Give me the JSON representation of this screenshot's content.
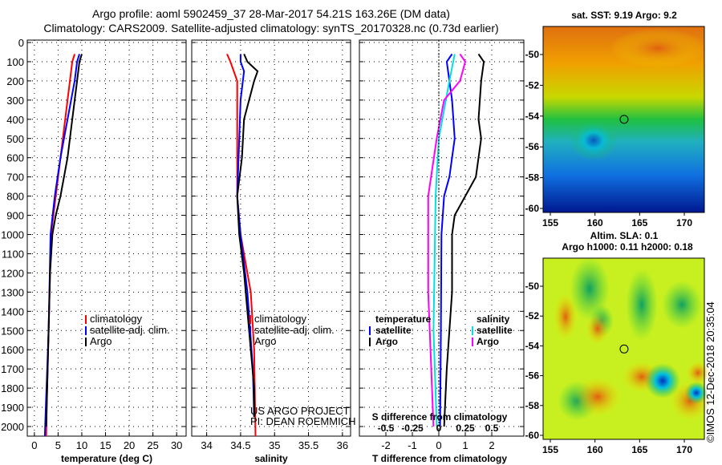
{
  "title_line1": "Argo profile: aoml 5902459_37 28-Mar-2017 54.21S 163.26E (DM data)",
  "title_line2": "Climatology: CARS2009. Satellite-adjusted climatology: synTS_20170328.nc (0.73d earlier)",
  "depth_ticks": [
    0,
    100,
    200,
    300,
    400,
    500,
    600,
    700,
    800,
    900,
    1000,
    1100,
    1200,
    1300,
    1400,
    1500,
    1600,
    1700,
    1800,
    1900,
    2000
  ],
  "colors": {
    "climatology": "#ff0000",
    "satellite": "#0000ff",
    "argo": "#000000",
    "s_satellite": "#00e0e0",
    "s_argo": "#ff00ff"
  },
  "chart_data": [
    {
      "type": "line",
      "xlabel": "temperature (deg C)",
      "xlim": [
        -1.5,
        32
      ],
      "ylim": [
        2060,
        0
      ],
      "xticks": [
        0,
        5,
        10,
        15,
        20,
        25,
        30
      ],
      "legend": [
        "climatology",
        "satellite-adj. clim.",
        "Argo"
      ],
      "series": [
        {
          "name": "climatology",
          "color": "climatology",
          "x": [
            8.5,
            8,
            7,
            5.5,
            4.5,
            3.5,
            3,
            2.6,
            2.5
          ],
          "depth": [
            60,
            100,
            300,
            600,
            800,
            1000,
            1500,
            1900,
            2050
          ]
        },
        {
          "name": "satellite-adj. clim.",
          "color": "satellite",
          "x": [
            9.5,
            9,
            8.5,
            7,
            5.5,
            4.3,
            3.4,
            3,
            2.4,
            2.2
          ],
          "depth": [
            60,
            100,
            200,
            400,
            600,
            800,
            1000,
            1500,
            1900,
            2050
          ]
        },
        {
          "name": "Argo",
          "color": "argo",
          "x": [
            10,
            9.5,
            9,
            8,
            7,
            5.5,
            4.5,
            3.8,
            3.3,
            3,
            2.5
          ],
          "depth": [
            60,
            100,
            200,
            400,
            600,
            800,
            900,
            1000,
            1200,
            1500,
            2000
          ]
        }
      ]
    },
    {
      "type": "line",
      "xlabel": "salinity",
      "xlim": [
        33.78,
        36.12
      ],
      "ylim": [
        2060,
        0
      ],
      "xticks": [
        34,
        34.5,
        35,
        35.5,
        36
      ],
      "legend": [
        "climatology",
        "satellite-adj. clim.",
        "Argo"
      ],
      "series": [
        {
          "name": "climatology",
          "color": "climatology",
          "x": [
            34.3,
            34.35,
            34.45,
            34.45,
            34.45,
            34.5,
            34.65,
            34.7,
            34.72
          ],
          "depth": [
            60,
            100,
            200,
            500,
            800,
            1000,
            1300,
            1600,
            2050
          ]
        },
        {
          "name": "satellite-adj. clim.",
          "color": "satellite",
          "x": [
            34.5,
            34.5,
            34.55,
            34.5,
            34.47,
            34.45,
            34.5,
            34.6,
            34.68,
            34.7
          ],
          "depth": [
            60,
            100,
            150,
            300,
            600,
            800,
            1000,
            1300,
            1700,
            1950
          ]
        },
        {
          "name": "Argo",
          "color": "argo",
          "x": [
            34.55,
            34.6,
            34.75,
            34.7,
            34.55,
            34.52,
            34.45,
            34.48,
            34.55,
            34.6,
            34.65,
            34.7,
            34.7
          ],
          "depth": [
            60,
            100,
            150,
            200,
            400,
            600,
            800,
            1000,
            1200,
            1400,
            1600,
            1800,
            1950
          ]
        }
      ],
      "annotation": [
        "US ARGO PROJECT",
        "PI: DEAN ROEMMICH"
      ]
    },
    {
      "type": "line",
      "xlabel": "T difference from climatology",
      "xlim": [
        -3,
        3.2
      ],
      "ylim": [
        2060,
        0
      ],
      "xticks": [
        -2,
        -1,
        0,
        1,
        2
      ],
      "x2label": "S difference from climatology",
      "x2ticks": [
        -0.5,
        -0.25,
        0,
        0.25,
        0.5
      ],
      "legend_t": {
        "title": "temperature",
        "items": [
          "satellite",
          "Argo"
        ]
      },
      "legend_s": {
        "title": "salinity",
        "items": [
          "satellite",
          "Argo"
        ]
      },
      "series": [
        {
          "name": "T satellite",
          "color": "satellite",
          "axis": "T",
          "x": [
            0.5,
            0.3,
            0.5,
            0.6,
            0.4,
            0.2,
            0.1,
            0.08,
            0.05
          ],
          "depth": [
            60,
            100,
            300,
            500,
            700,
            800,
            1000,
            1500,
            2000
          ]
        },
        {
          "name": "T Argo",
          "color": "argo",
          "axis": "T",
          "x": [
            1.5,
            1.7,
            1.6,
            1.5,
            1.6,
            1.5,
            1.4,
            1.0,
            0.6,
            0.5,
            0.5,
            0.4,
            0.3,
            0.2
          ],
          "depth": [
            60,
            100,
            200,
            400,
            500,
            600,
            700,
            800,
            900,
            1000,
            1300,
            1500,
            1700,
            2000
          ]
        },
        {
          "name": "S satellite",
          "color": "s_satellite",
          "axis": "S",
          "x": [
            0.15,
            0.1,
            0.05,
            0,
            -0.03,
            -0.05,
            -0.02
          ],
          "depth": [
            60,
            200,
            350,
            500,
            800,
            1500,
            2000
          ]
        },
        {
          "name": "S Argo",
          "color": "s_argo",
          "axis": "S",
          "x": [
            0.2,
            0.25,
            0.2,
            0.05,
            -0.02,
            -0.1,
            -0.1,
            -0.05
          ],
          "depth": [
            60,
            100,
            200,
            300,
            500,
            800,
            1300,
            2000
          ]
        }
      ]
    },
    {
      "type": "heatmap",
      "title": "sat. SST: 9.19 Argo: 9.2",
      "xticks": [
        155,
        160,
        165,
        170
      ],
      "yticks": [
        -50,
        -52,
        -54,
        -56,
        -58,
        -60
      ],
      "marker": [
        163.26,
        -54.21
      ]
    },
    {
      "type": "heatmap",
      "title": "Altim. SLA: 0.1",
      "subtitle": "Argo h1000: 0.11 h2000: 0.18",
      "xticks": [
        155,
        160,
        165,
        170
      ],
      "yticks": [
        -50,
        -52,
        -54,
        -56,
        -58,
        -60
      ],
      "marker": [
        163.26,
        -54.21
      ]
    }
  ],
  "credit": "©IMOS 12-Dec-2018 20:35:04"
}
